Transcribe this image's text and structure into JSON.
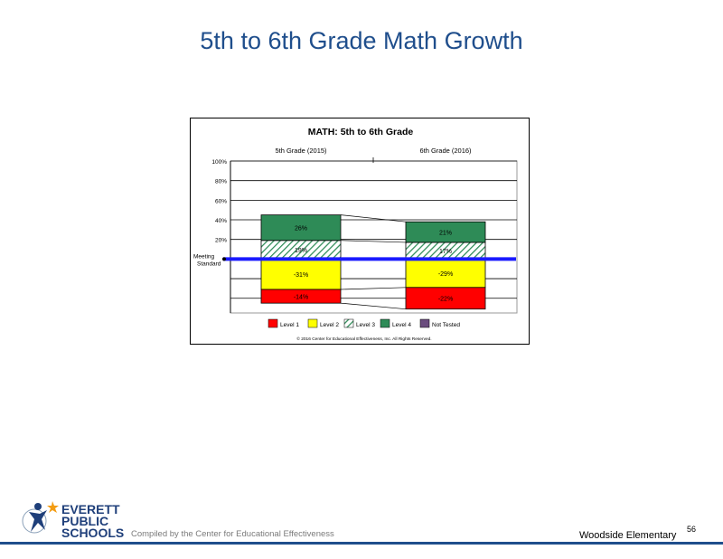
{
  "slide": {
    "title": "5th to 6th Grade Math Growth",
    "compiled_by": "Compiled by the Center for Educational Effectiveness",
    "school": "Woodside Elementary",
    "page_number": "56",
    "logo_lines": [
      "EVERETT",
      "PUBLIC",
      "SCHOOLS"
    ]
  },
  "chart_data": {
    "type": "bar",
    "title": "MATH: 5th to 6th Grade",
    "categories": [
      "5th Grade (2015)",
      "6th Grade (2016)"
    ],
    "y_ticks": [
      "100%",
      "80%",
      "60%",
      "40%",
      "20%"
    ],
    "y_range": [
      -55,
      100
    ],
    "baseline_label": [
      "Meeting",
      "Standard"
    ],
    "series": [
      {
        "name": "Level 1",
        "color": "#ff0000",
        "values": [
          -14,
          -22
        ],
        "labels": [
          "-14%",
          "-22%"
        ]
      },
      {
        "name": "Level 2",
        "color": "#ffff00",
        "values": [
          -31,
          -29
        ],
        "labels": [
          "-31%",
          "-29%"
        ]
      },
      {
        "name": "Level 3",
        "color": "#2e8b57",
        "pattern": "hatch",
        "values": [
          19,
          17
        ],
        "labels": [
          "19%",
          "17%"
        ]
      },
      {
        "name": "Level 4",
        "color": "#2e8b57",
        "values": [
          26,
          21
        ],
        "labels": [
          "26%",
          "21%"
        ]
      },
      {
        "name": "Not Tested",
        "color": "#6a4c7e",
        "values": [
          0,
          0
        ],
        "labels": [
          "",
          ""
        ]
      }
    ],
    "copyright": "© 2016 Center for Educational Effectiveness, Inc. All Rights Reserved.",
    "colors": {
      "baseline": "#1a1aff"
    }
  }
}
